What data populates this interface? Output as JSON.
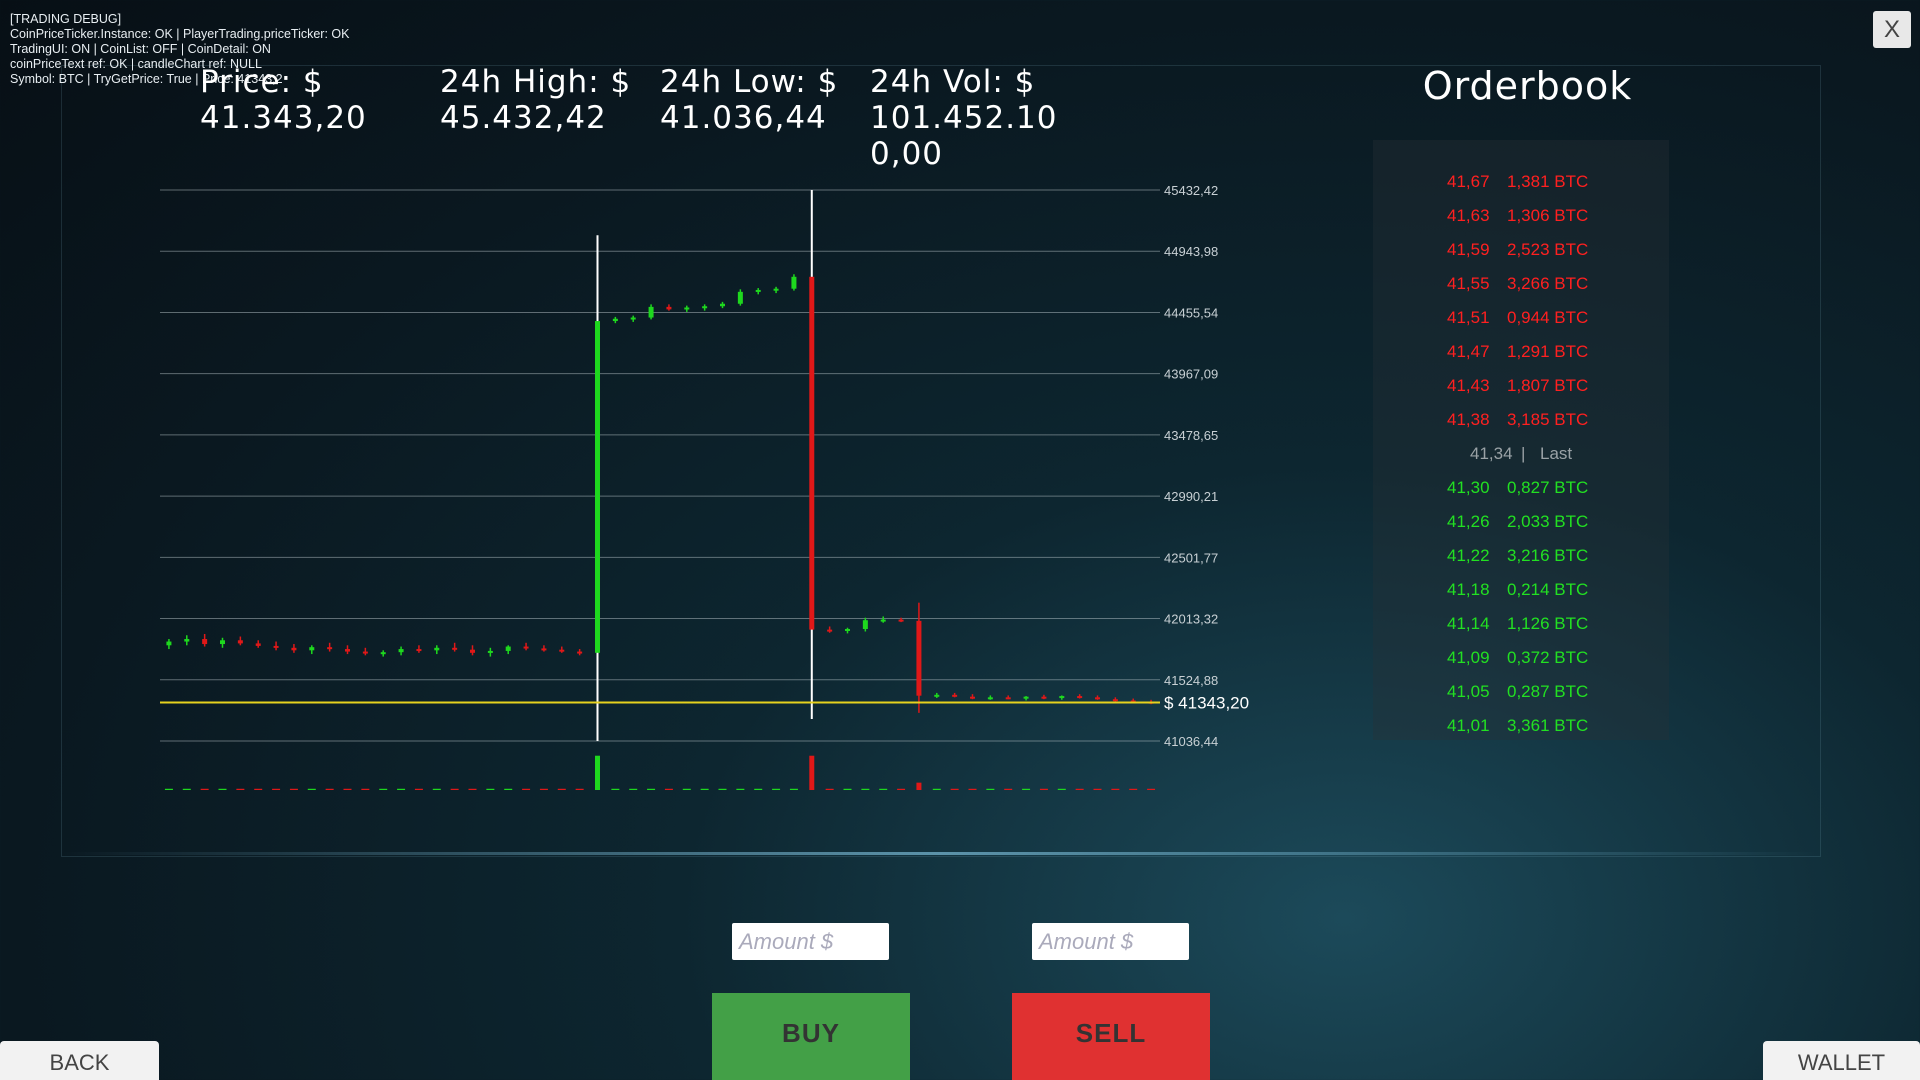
{
  "debug": [
    "[TRADING DEBUG]",
    "CoinPriceTicker.Instance: OK | PlayerTrading.priceTicker: OK",
    "TradingUI: ON | CoinList: OFF | CoinDetail: ON",
    "coinPriceText ref: OK | candleChart ref: NULL",
    "Symbol: BTC | TryGetPrice: True | Price: 41343,2"
  ],
  "stats": [
    {
      "label": "Price: $",
      "value": "41.343,20"
    },
    {
      "label": "24h High: $",
      "value": "45.432,42"
    },
    {
      "label": "24h Low: $",
      "value": "41.036,44"
    },
    {
      "label": "24h Vol: $",
      "value": "101.452.100,00"
    }
  ],
  "chart_data": {
    "type": "candlestick",
    "ylim": [
      41036.44,
      45432.42
    ],
    "yticks": [
      {
        "value": 45432.42,
        "label": "45432,42"
      },
      {
        "value": 44943.98,
        "label": "44943,98"
      },
      {
        "value": 44455.54,
        "label": "44455,54"
      },
      {
        "value": 43967.09,
        "label": "43967,09"
      },
      {
        "value": 43478.65,
        "label": "43478,65"
      },
      {
        "value": 42990.21,
        "label": "42990,21"
      },
      {
        "value": 42501.77,
        "label": "42501,77"
      },
      {
        "value": 42013.32,
        "label": "42013,32"
      },
      {
        "value": 41524.88,
        "label": "41524,88"
      },
      {
        "value": 41036.44,
        "label": "41036,44"
      }
    ],
    "grid": true,
    "up_color": "#1ed81e",
    "down_color": "#e01818",
    "price_line": {
      "value": 41343.2,
      "label": "$ 41343,20",
      "color": "#e6d21e"
    },
    "open": [
      41800,
      41830,
      41850,
      41810,
      41840,
      41815,
      41795,
      41780,
      41760,
      41785,
      41770,
      41750,
      41735,
      41745,
      41770,
      41760,
      41780,
      41765,
      41740,
      41755,
      41790,
      41775,
      41765,
      41750,
      41740,
      44387,
      44405,
      44415,
      44500,
      44480,
      44495,
      44505,
      44525,
      44620,
      44635,
      44645,
      44740,
      41925,
      41915,
      41930,
      42000,
      42005,
      41995,
      41398,
      41405,
      41390,
      41380,
      41385,
      41375,
      41390,
      41380,
      41395,
      41385,
      41370,
      41360,
      41350
    ],
    "high": [
      41850,
      41880,
      41890,
      41860,
      41870,
      41840,
      41830,
      41810,
      41800,
      41820,
      41800,
      41780,
      41760,
      41790,
      41800,
      41800,
      41820,
      41800,
      41780,
      41800,
      41820,
      41800,
      41790,
      41770,
      45071,
      44420,
      44430,
      44520,
      44520,
      44510,
      44520,
      44540,
      44640,
      44650,
      44660,
      44760,
      45432.42,
      41950,
      41940,
      42020,
      42030,
      42020,
      42140,
      41420,
      41420,
      41410,
      41400,
      41400,
      41395,
      41405,
      41400,
      41410,
      41400,
      41385,
      41375,
      41365
    ],
    "low": [
      41770,
      41800,
      41790,
      41780,
      41800,
      41780,
      41760,
      41740,
      41730,
      41750,
      41730,
      41720,
      41710,
      41720,
      41740,
      41730,
      41750,
      41720,
      41710,
      41730,
      41760,
      41750,
      41740,
      41720,
      41036.44,
      44370,
      44380,
      44400,
      44470,
      44460,
      44470,
      44490,
      44510,
      44600,
      44610,
      44630,
      41212,
      41900,
      41895,
      41910,
      41980,
      41985,
      41261,
      41380,
      41385,
      41370,
      41365,
      41370,
      41360,
      41370,
      41365,
      41375,
      41365,
      41350,
      41340,
      41330
    ],
    "close": [
      41830,
      41850,
      41810,
      41840,
      41815,
      41795,
      41780,
      41760,
      41785,
      41770,
      41750,
      41735,
      41745,
      41770,
      41760,
      41780,
      41765,
      41740,
      41755,
      41790,
      41775,
      41765,
      41750,
      41740,
      44387,
      44405,
      44415,
      44500,
      44480,
      44495,
      44505,
      44525,
      44620,
      44635,
      44645,
      44740,
      41925,
      41915,
      41930,
      42000,
      42005,
      41995,
      41398,
      41405,
      41390,
      41380,
      41385,
      41375,
      41390,
      41380,
      41395,
      41385,
      41370,
      41360,
      41350,
      41343.2
    ],
    "volume": [
      1,
      1,
      1,
      1,
      1,
      1,
      1,
      1,
      1,
      1,
      1,
      1,
      1,
      1,
      1,
      1,
      1,
      1,
      1,
      1,
      1,
      1,
      1,
      1,
      28,
      1,
      1,
      1,
      1,
      1,
      1,
      1,
      1,
      1,
      1,
      1,
      28,
      1,
      1,
      1,
      1,
      1,
      6,
      1,
      1,
      1,
      1,
      1,
      1,
      1,
      1,
      1,
      1,
      1,
      1,
      1
    ]
  },
  "orderbook": {
    "title": "Orderbook",
    "asks": [
      [
        "41,67",
        "1,381 BTC"
      ],
      [
        "41,63",
        "1,306 BTC"
      ],
      [
        "41,59",
        "2,523 BTC"
      ],
      [
        "41,55",
        "3,266 BTC"
      ],
      [
        "41,51",
        "0,944 BTC"
      ],
      [
        "41,47",
        "1,291 BTC"
      ],
      [
        "41,43",
        "1,807 BTC"
      ],
      [
        "41,38",
        "3,185 BTC"
      ]
    ],
    "last": {
      "price": "41,34",
      "separator": "|",
      "label": "Last"
    },
    "bids": [
      [
        "41,30",
        "0,827 BTC"
      ],
      [
        "41,26",
        "2,033 BTC"
      ],
      [
        "41,22",
        "3,216 BTC"
      ],
      [
        "41,18",
        "0,214 BTC"
      ],
      [
        "41,14",
        "1,126 BTC"
      ],
      [
        "41,09",
        "0,372 BTC"
      ],
      [
        "41,05",
        "0,287 BTC"
      ],
      [
        "41,01",
        "3,361 BTC"
      ]
    ]
  },
  "controls": {
    "buy_placeholder": "Amount $",
    "sell_placeholder": "Amount $",
    "buy": "BUY",
    "sell": "SELL",
    "back": "BACK",
    "wallet": "WALLET",
    "close": "X"
  }
}
